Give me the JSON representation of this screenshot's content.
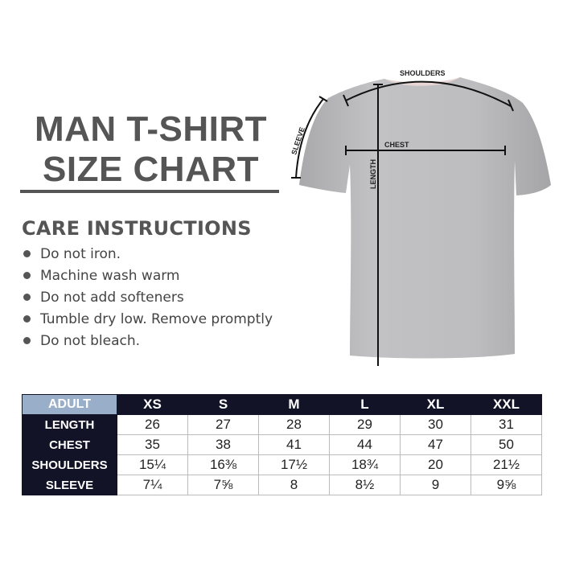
{
  "title": {
    "line1": "MAN T-SHIRT",
    "line2": "SIZE CHART"
  },
  "care": {
    "heading": "CARE INSTRUCTIONS",
    "items": [
      "Do not iron.",
      "Machine wash warm",
      "Do not add softeners",
      "Tumble dry low. Remove promptly",
      "Do not bleach."
    ]
  },
  "diagram": {
    "shoulders": "SHOULDERS",
    "sleeve": "SLEEVE",
    "chest": "CHEST",
    "length": "LENGTH"
  },
  "table": {
    "corner": "ADULT",
    "sizes": [
      "XS",
      "S",
      "M",
      "L",
      "XL",
      "XXL"
    ],
    "rows": [
      {
        "label": "LENGTH",
        "values": [
          "26",
          "27",
          "28",
          "29",
          "30",
          "31"
        ]
      },
      {
        "label": "CHEST",
        "values": [
          "35",
          "38",
          "41",
          "44",
          "47",
          "50"
        ]
      },
      {
        "label": "SHOULDERS",
        "values": [
          "15¼",
          "16⅜",
          "17½",
          "18¾",
          "20",
          "21½"
        ]
      },
      {
        "label": "SLEEVE",
        "values": [
          "7¼",
          "7⅝",
          "8",
          "8½",
          "9",
          "9⅝"
        ]
      }
    ]
  },
  "colors": {
    "header_dark": "#121327",
    "adult_cell": "#99aec9",
    "shirt": "#b9b9bb",
    "title_gray": "#555555"
  }
}
